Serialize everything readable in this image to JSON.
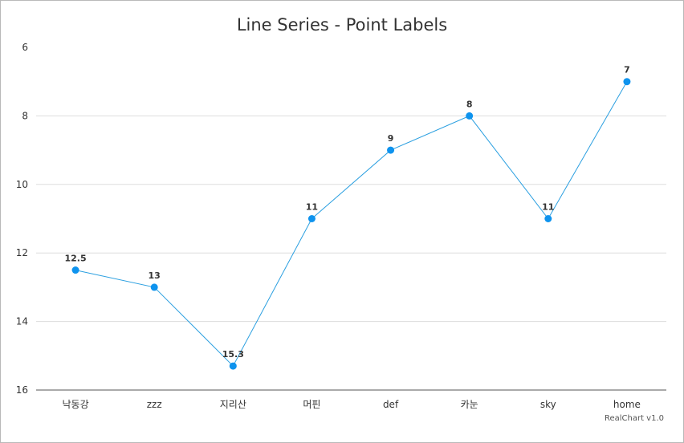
{
  "chart_data": {
    "type": "line",
    "title": "Line Series - Point Labels",
    "credit": "RealChart v1.0",
    "categories": [
      "낙동강",
      "zzz",
      "지리산",
      "머핀",
      "def",
      "카눈",
      "sky",
      "home"
    ],
    "series": [
      {
        "values": [
          12.5,
          13,
          15.3,
          11,
          9,
          8,
          11,
          7
        ]
      }
    ],
    "data_labels": [
      "12.5",
      "13",
      "15.3",
      "11",
      "9",
      "8",
      "11",
      "7"
    ],
    "y_axis": {
      "min": 6,
      "max": 16,
      "reversed": true,
      "ticks": [
        6,
        8,
        10,
        12,
        14,
        16
      ]
    },
    "grid": true,
    "legend": "none",
    "colors": {
      "line": "#2a9fe0",
      "point": "#0e93ee",
      "grid": "#dddddd",
      "axis": "#555555"
    }
  }
}
